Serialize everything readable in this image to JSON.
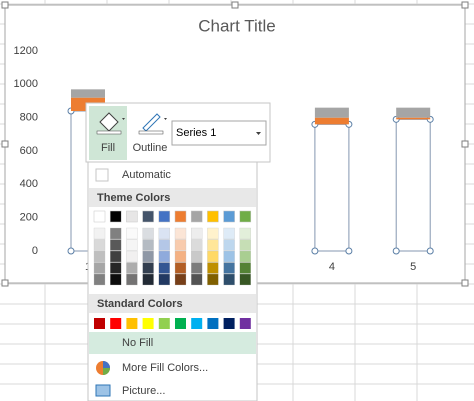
{
  "chart": {
    "type": "bar",
    "title": "Chart Title",
    "categories": [
      "1",
      null,
      null,
      "4",
      "5"
    ],
    "series": [
      {
        "name": "Series 1",
        "color": "none",
        "values": [
          840,
          null,
          null,
          760,
          790
        ]
      },
      {
        "color": "#ed7d31",
        "values": [
          80,
          null,
          null,
          40,
          10
        ]
      },
      {
        "color": "#a5a5a5",
        "values": [
          50,
          null,
          null,
          60,
          60
        ]
      }
    ],
    "ylim": [
      0,
      1200
    ],
    "yticks": [
      0,
      200,
      400,
      600,
      800,
      1000,
      1200
    ]
  },
  "toolbar": {
    "fill": "Fill",
    "outline": "Outline"
  },
  "menu": {
    "automatic": "Automatic",
    "theme_colors": "Theme Colors",
    "standard_colors": "Standard Colors",
    "no_fill": "No Fill",
    "more_fill_colors": "More Fill Colors...",
    "picture": "Picture..."
  }
}
